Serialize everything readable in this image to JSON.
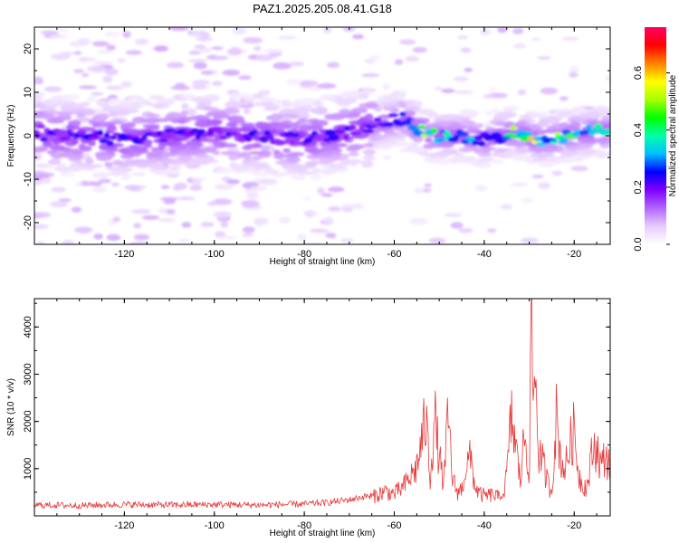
{
  "title": "PAZ1.2025.205.08.41.G18",
  "chart_data": [
    {
      "type": "heatmap",
      "xlabel": "Height of straight line (km)",
      "ylabel": "Frequency (Hz)",
      "xlim": [
        -140,
        -12
      ],
      "ylim": [
        -25,
        25
      ],
      "xticks": [
        "-120",
        "-100",
        "-80",
        "-60",
        "-40",
        "-20"
      ],
      "yticks": [
        "-20",
        "-10",
        "0",
        "10",
        "20"
      ],
      "colorbar": {
        "label": "Normalized spectral amplitude",
        "ticks": [
          "0.0",
          "0.2",
          "0.4",
          "0.6"
        ],
        "range": [
          0,
          0.76
        ],
        "colormap": [
          "#ffffff",
          "#e6ccff",
          "#b266ff",
          "#8000ff",
          "#0000ff",
          "#00bfff",
          "#00ffaa",
          "#00ff00",
          "#aaff00",
          "#ffff00",
          "#ff8000",
          "#ff0000",
          "#ff0066"
        ]
      },
      "ridge": [
        [
          -138,
          0
        ],
        [
          -130,
          0
        ],
        [
          -120,
          -1
        ],
        [
          -110,
          0
        ],
        [
          -100,
          1
        ],
        [
          -90,
          0
        ],
        [
          -80,
          -1
        ],
        [
          -70,
          1
        ],
        [
          -63,
          3
        ],
        [
          -58,
          4
        ],
        [
          -52,
          0
        ],
        [
          -45,
          0
        ],
        [
          -40,
          -1
        ],
        [
          -33,
          1
        ],
        [
          -28,
          -1
        ],
        [
          -22,
          0
        ],
        [
          -15,
          1
        ],
        [
          -12,
          1
        ]
      ],
      "grid": false
    },
    {
      "type": "line",
      "xlabel": "Height of straight line (km)",
      "ylabel": "SNR (10 * v/v)",
      "xlim": [
        -140,
        -12
      ],
      "ylim": [
        0,
        4600
      ],
      "xticks": [
        "-120",
        "-100",
        "-80",
        "-60",
        "-40",
        "-20"
      ],
      "yticks": [
        "1000",
        "2000",
        "3000",
        "4000"
      ],
      "color": "#e8393a",
      "x": [
        -140,
        -130,
        -120,
        -110,
        -100,
        -90,
        -80,
        -75,
        -70,
        -66,
        -62,
        -60,
        -58,
        -55,
        -53,
        -52,
        -51,
        -50,
        -49,
        -48,
        -47,
        -46,
        -45,
        -44,
        -43,
        -42,
        -41,
        -40,
        -38,
        -36,
        -35,
        -34,
        -33,
        -32,
        -31,
        -30,
        -29.5,
        -29,
        -28.5,
        -28,
        -27,
        -26,
        -25,
        -24,
        -23,
        -22,
        -21,
        -20,
        -19,
        -18,
        -17,
        -16,
        -15,
        -14,
        -13,
        -12
      ],
      "y": [
        190,
        180,
        200,
        190,
        200,
        190,
        210,
        240,
        300,
        380,
        560,
        500,
        650,
        1100,
        2200,
        900,
        2250,
        1300,
        700,
        2250,
        800,
        550,
        600,
        1150,
        1300,
        650,
        500,
        450,
        480,
        380,
        900,
        2250,
        1600,
        800,
        1900,
        1000,
        4550,
        2500,
        3350,
        1500,
        1200,
        800,
        550,
        2250,
        1300,
        1050,
        1600,
        1950,
        950,
        680,
        700,
        1450,
        1600,
        1100,
        1400,
        1100
      ]
    }
  ]
}
